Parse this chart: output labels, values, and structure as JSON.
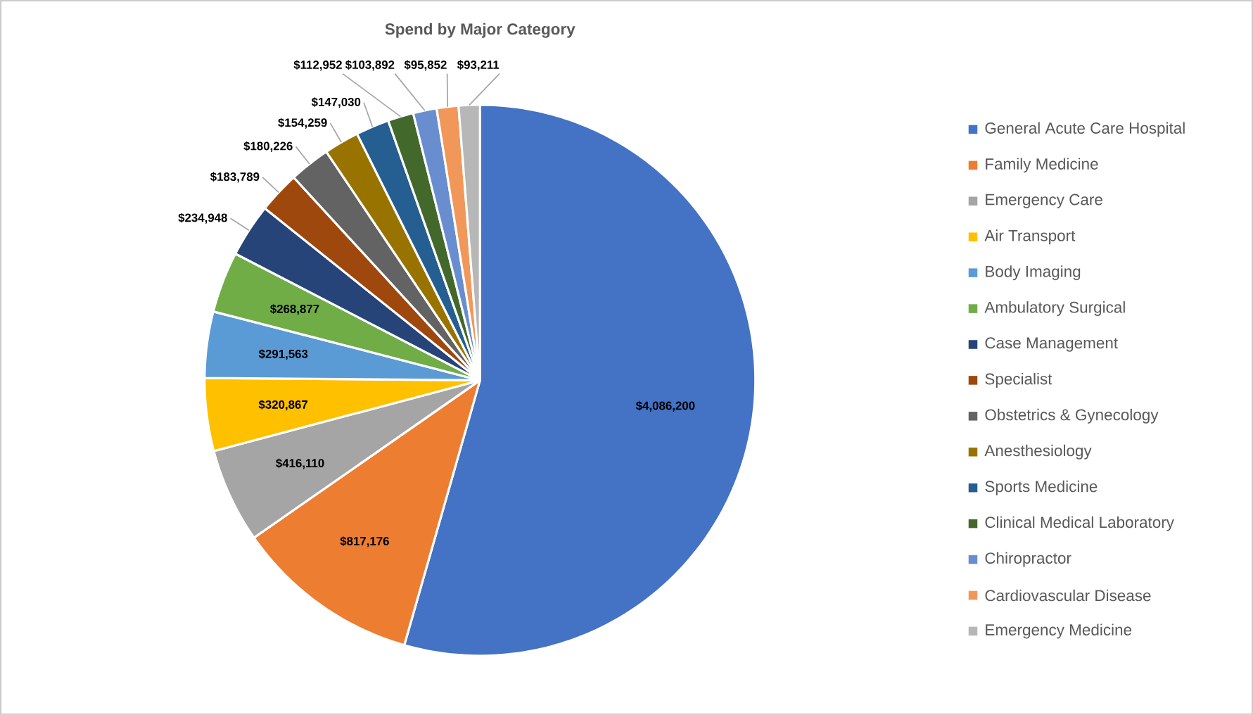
{
  "chart_data": {
    "type": "pie",
    "title": "Spend by Major Category",
    "categories": [
      "General Acute Care Hospital",
      "Family Medicine",
      "Emergency Care",
      "Air Transport",
      "Body Imaging",
      "Ambulatory Surgical",
      "Case Management",
      "Specialist",
      "Obstetrics & Gynecology",
      "Anesthesiology",
      "Sports Medicine",
      "Clinical Medical Laboratory",
      "Chiropractor",
      "Cardiovascular Disease",
      "Emergency Medicine"
    ],
    "values": [
      4086200,
      817176,
      416110,
      320867,
      291563,
      268877,
      234948,
      183789,
      180226,
      154259,
      147030,
      112952,
      103892,
      95852,
      93211
    ],
    "value_labels": [
      "$4,086,200",
      "$817,176",
      "$416,110",
      "$320,867",
      "$291,563",
      "$268,877",
      "$234,948",
      "$183,789",
      "$180,226",
      "$154,259",
      "$147,030",
      "$112,952",
      "$103,892",
      "$95,852",
      "$93,211"
    ],
    "colors": [
      "#4472c4",
      "#ed7d31",
      "#a5a5a5",
      "#ffc000",
      "#5b9bd5",
      "#70ad47",
      "#264478",
      "#9e480e",
      "#636363",
      "#997300",
      "#255e91",
      "#43682b",
      "#698ed0",
      "#f1975a",
      "#b7b7b7"
    ],
    "legend": "right"
  }
}
